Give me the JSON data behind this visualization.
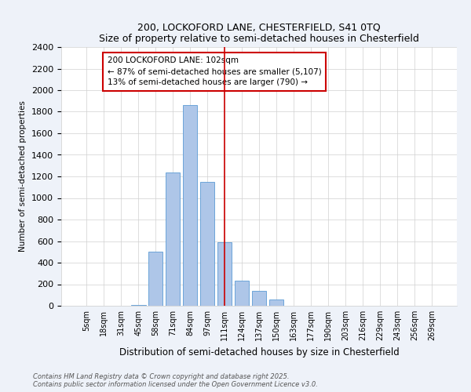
{
  "title1": "200, LOCKOFORD LANE, CHESTERFIELD, S41 0TQ",
  "title2": "Size of property relative to semi-detached houses in Chesterfield",
  "xlabel": "Distribution of semi-detached houses by size in Chesterfield",
  "ylabel": "Number of semi-detached properties",
  "categories": [
    "5sqm",
    "18sqm",
    "31sqm",
    "45sqm",
    "58sqm",
    "71sqm",
    "84sqm",
    "97sqm",
    "111sqm",
    "124sqm",
    "137sqm",
    "150sqm",
    "163sqm",
    "177sqm",
    "190sqm",
    "203sqm",
    "216sqm",
    "229sqm",
    "243sqm",
    "256sqm",
    "269sqm"
  ],
  "values": [
    0,
    0,
    0,
    5,
    500,
    1240,
    1860,
    1150,
    590,
    230,
    135,
    60,
    0,
    0,
    0,
    0,
    0,
    0,
    0,
    0,
    0
  ],
  "bar_color": "#aec6e8",
  "bar_edge_color": "#5b9bd5",
  "property_line_color": "#cc0000",
  "annotation_text": "200 LOCKOFORD LANE: 102sqm\n← 87% of semi-detached houses are smaller (5,107)\n13% of semi-detached houses are larger (790) →",
  "annotation_box_color": "#cc0000",
  "ylim": [
    0,
    2400
  ],
  "yticks": [
    0,
    200,
    400,
    600,
    800,
    1000,
    1200,
    1400,
    1600,
    1800,
    2000,
    2200,
    2400
  ],
  "footer1": "Contains HM Land Registry data © Crown copyright and database right 2025.",
  "footer2": "Contains public sector information licensed under the Open Government Licence v3.0.",
  "bg_color": "#eef2f9",
  "plot_bg_color": "#ffffff",
  "grid_color": "#d0d0d0"
}
